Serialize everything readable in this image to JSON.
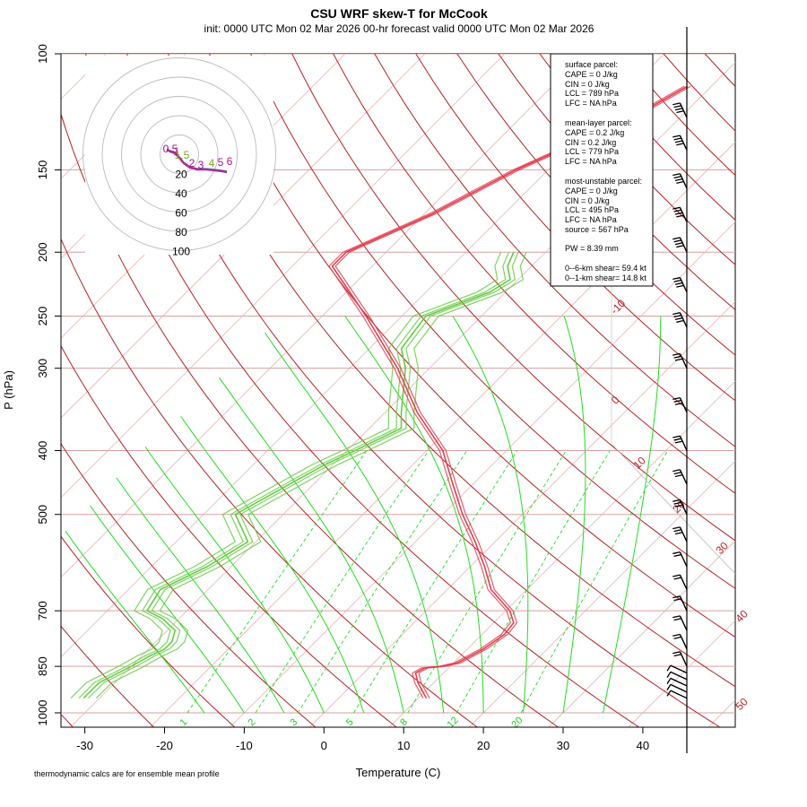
{
  "chart_data": {
    "type": "skew-t",
    "title": "CSU WRF skew-T for McCook",
    "subtitle": "init: 0000 UTC Mon 02 Mar 2026     00-hr forecast valid 0000 UTC Mon 02 Mar 2026",
    "xlabel": "Temperature (C)",
    "ylabel": "P (hPa)",
    "x_ticks": [
      "-30",
      "-20",
      "-10",
      "0",
      "10",
      "20",
      "30",
      "40"
    ],
    "y_ticks": [
      "100",
      "150",
      "200",
      "250",
      "300",
      "400",
      "500",
      "700",
      "850",
      "1000"
    ],
    "isotherm_labels": [
      "-10",
      "0",
      "10",
      "20",
      "30",
      "40",
      "50"
    ],
    "mixing_ratio_labels": [
      "1",
      "2",
      "3",
      "5",
      "8",
      "12",
      "20"
    ],
    "footnote": "thermodynamic calcs are for ensemble mean profile",
    "hodograph": {
      "ring_labels": [
        "20",
        "40",
        "60",
        "80",
        "100"
      ],
      "point_labels": [
        "0.5",
        "1",
        "1.5",
        "2",
        "3",
        "4",
        "5",
        "6"
      ]
    },
    "temperature_profile": {
      "pressure_hpa": [
        950,
        900,
        870,
        855,
        850,
        840,
        800,
        760,
        730,
        700,
        650,
        600,
        550,
        500,
        450,
        400,
        350,
        300,
        250,
        210,
        200,
        175,
        150,
        125,
        112
      ],
      "temp_c": [
        11.0,
        8.0,
        6.5,
        7.0,
        9.0,
        10.5,
        12.0,
        12.8,
        12.5,
        10.5,
        5.5,
        1.8,
        -2.5,
        -7.5,
        -12.5,
        -18.0,
        -26.0,
        -34.0,
        -44.5,
        -55.0,
        -55.0,
        -49.0,
        -44.0,
        -36.0,
        -33.0
      ]
    },
    "dewpoint_profile": {
      "pressure_hpa": [
        950,
        900,
        850,
        820,
        800,
        780,
        750,
        720,
        700,
        650,
        600,
        550,
        500,
        450,
        420,
        400,
        370,
        350,
        300,
        280,
        250,
        230,
        220,
        210,
        200
      ],
      "dewpoint_c": [
        -32.0,
        -32.0,
        -30.0,
        -29.0,
        -28.0,
        -28.0,
        -29.0,
        -32.0,
        -35.0,
        -36.0,
        -33.0,
        -31.0,
        -36.0,
        -33.0,
        -31.0,
        -29.0,
        -26.0,
        -28.0,
        -33.0,
        -36.0,
        -37.0,
        -32.0,
        -31.0,
        -33.0,
        -34.0
      ]
    },
    "wind_barbs_pressure_hpa": [
      125,
      140,
      160,
      180,
      200,
      230,
      260,
      300,
      350,
      400,
      450,
      500,
      550,
      600,
      650,
      700,
      750,
      800,
      850,
      870,
      890,
      910,
      930,
      950
    ],
    "parcel_info": {
      "surface_header": "surface parcel:",
      "surface": [
        "CAPE = 0 J/kg",
        "CIN = 0 J/kg",
        "LCL = 789 hPa",
        "LFC = NA hPa"
      ],
      "mean_layer_header": "mean-layer parcel:",
      "mean_layer": [
        "CAPE = 0.2 J/kg",
        "CIN = 0.2 J/kg",
        "LCL = 779 hPa",
        "LFC = NA hPa"
      ],
      "most_unstable_header": "most-unstable parcel:",
      "most_unstable": [
        "CAPE = 0 J/kg",
        "CIN = 0 J/kg",
        "LCL = 495 hPa",
        "LFC = NA hPa",
        "source = 567 hPa"
      ],
      "pw": "PW =  8.39 mm",
      "shear_06": "0--6-km shear= 59.4 kt",
      "shear_01": "0--1-km shear= 14.8 kt"
    },
    "colors": {
      "temperature": "#e04050",
      "dewpoint": "#66cc44",
      "isotherm": "#b22222",
      "isobar": "#d9a0a0",
      "dry_adiabat": "#b22222",
      "moist_adiabat": "#22dd22",
      "mixing_ratio": "#22dd22"
    }
  }
}
